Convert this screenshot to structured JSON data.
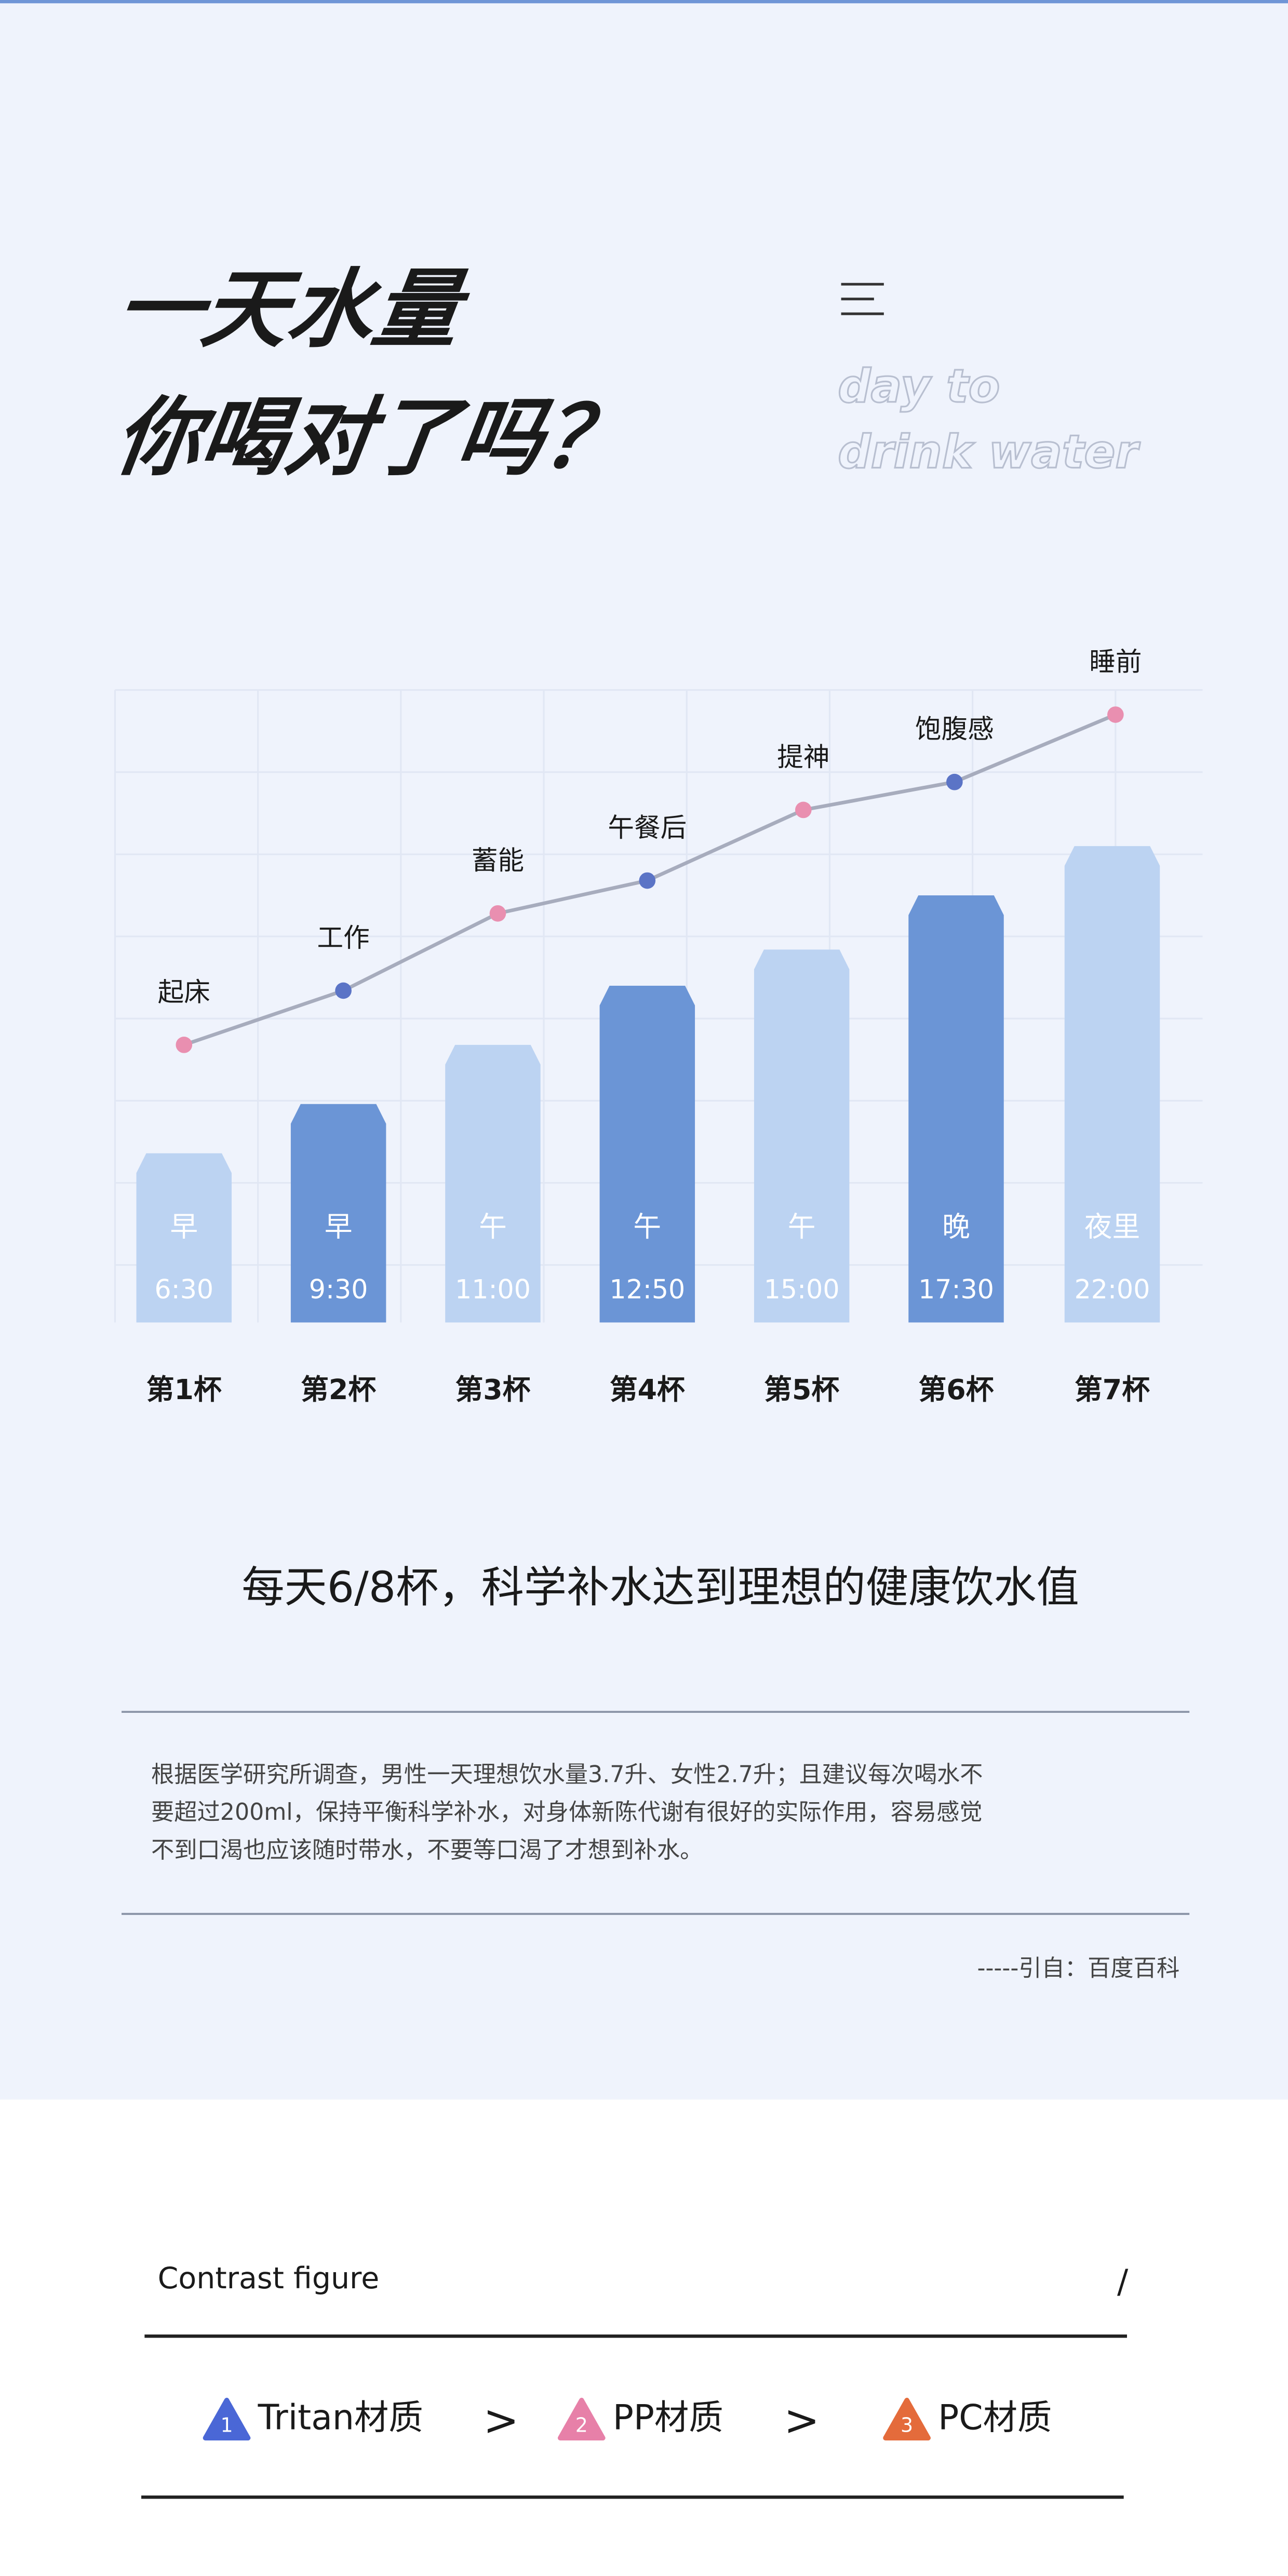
{
  "header": {
    "title_lines": [
      "一天水量",
      "你喝对了吗？"
    ],
    "subtitle_lines": [
      "day to",
      "drink water"
    ]
  },
  "chart": {
    "cups": [
      {
        "annotation": "起床",
        "period": "早",
        "time": "6:30",
        "label": "第1杯"
      },
      {
        "annotation": "工作",
        "period": "早",
        "time": "9:30",
        "label": "第2杯"
      },
      {
        "annotation": "蓄能",
        "period": "午",
        "time": "11:00",
        "label": "第3杯"
      },
      {
        "annotation": "午餐后",
        "period": "午",
        "time": "12:50",
        "label": "第4杯"
      },
      {
        "annotation": "提神",
        "period": "午",
        "time": "15:00",
        "label": "第5杯"
      },
      {
        "annotation": "饱腹感",
        "period": "晚",
        "time": "17:30",
        "label": "第6杯"
      },
      {
        "annotation": "睡前",
        "period": "夜里",
        "time": "22:00",
        "label": "第7杯"
      }
    ]
  },
  "headline": "每天6/8杯，科学补水达到理想的健康饮水值",
  "note": {
    "lines": [
      "根据医学研究所调查，男性一天理想饮水量3.7升、女性2.7升；且建议每次喝水不",
      "要超过200ml，保持平衡科学补水，对身体新陈代谢有很好的实际作用，容易感觉",
      "不到口渴也应该随时带水，不要等口渴了才想到补水。"
    ],
    "source": "-----引自：百度百科"
  },
  "contrast": {
    "title": "Contrast figure",
    "slash": "/",
    "items": [
      {
        "number": 1,
        "name": "Tritan材质"
      },
      {
        "number": 2,
        "name": "PP材质"
      },
      {
        "number": 3,
        "name": "PC材质"
      }
    ],
    "separators": [
      ">",
      ">"
    ]
  }
}
